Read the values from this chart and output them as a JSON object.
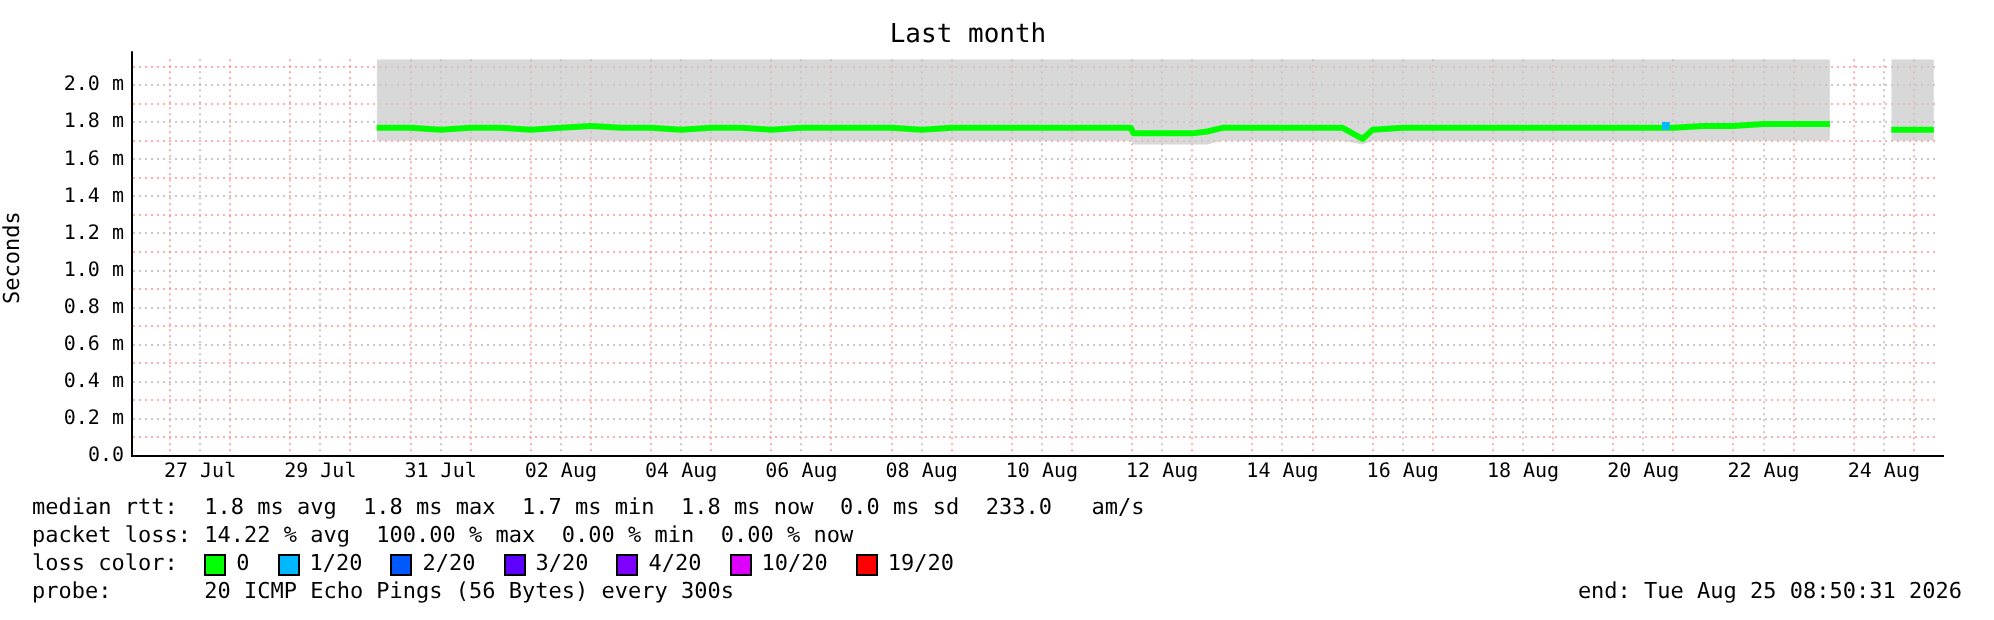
{
  "chart_data": {
    "type": "line",
    "title": "Last month",
    "ylabel": "Seconds",
    "xlim": [
      "2026-07-26T08:50",
      "2026-08-25T08:50"
    ],
    "xticks": [
      {
        "value": "2026-07-27T00:00",
        "label": null
      },
      {
        "value": "2026-07-27T12:00",
        "label": "27 Jul"
      },
      {
        "value": "2026-07-28T00:00",
        "label": null
      },
      {
        "value": "2026-07-29T00:00",
        "label": null
      },
      {
        "value": "2026-07-29T12:00",
        "label": "29 Jul"
      },
      {
        "value": "2026-07-30T00:00",
        "label": null
      },
      {
        "value": "2026-07-31T00:00",
        "label": null
      },
      {
        "value": "2026-07-31T12:00",
        "label": "31 Jul"
      },
      {
        "value": "2026-08-01T00:00",
        "label": null
      },
      {
        "value": "2026-08-02T00:00",
        "label": null
      },
      {
        "value": "2026-08-02T12:00",
        "label": "02 Aug"
      },
      {
        "value": "2026-08-03T00:00",
        "label": null
      },
      {
        "value": "2026-08-04T00:00",
        "label": null
      },
      {
        "value": "2026-08-04T12:00",
        "label": "04 Aug"
      },
      {
        "value": "2026-08-05T00:00",
        "label": null
      },
      {
        "value": "2026-08-06T00:00",
        "label": null
      },
      {
        "value": "2026-08-06T12:00",
        "label": "06 Aug"
      },
      {
        "value": "2026-08-07T00:00",
        "label": null
      },
      {
        "value": "2026-08-08T00:00",
        "label": null
      },
      {
        "value": "2026-08-08T12:00",
        "label": "08 Aug"
      },
      {
        "value": "2026-08-09T00:00",
        "label": null
      },
      {
        "value": "2026-08-10T00:00",
        "label": null
      },
      {
        "value": "2026-08-10T12:00",
        "label": "10 Aug"
      },
      {
        "value": "2026-08-11T00:00",
        "label": null
      },
      {
        "value": "2026-08-12T00:00",
        "label": null
      },
      {
        "value": "2026-08-12T12:00",
        "label": "12 Aug"
      },
      {
        "value": "2026-08-13T00:00",
        "label": null
      },
      {
        "value": "2026-08-14T00:00",
        "label": null
      },
      {
        "value": "2026-08-14T12:00",
        "label": "14 Aug"
      },
      {
        "value": "2026-08-15T00:00",
        "label": null
      },
      {
        "value": "2026-08-16T00:00",
        "label": null
      },
      {
        "value": "2026-08-16T12:00",
        "label": "16 Aug"
      },
      {
        "value": "2026-08-17T00:00",
        "label": null
      },
      {
        "value": "2026-08-18T00:00",
        "label": null
      },
      {
        "value": "2026-08-18T12:00",
        "label": "18 Aug"
      },
      {
        "value": "2026-08-19T00:00",
        "label": null
      },
      {
        "value": "2026-08-20T00:00",
        "label": null
      },
      {
        "value": "2026-08-20T12:00",
        "label": "20 Aug"
      },
      {
        "value": "2026-08-21T00:00",
        "label": null
      },
      {
        "value": "2026-08-22T00:00",
        "label": null
      },
      {
        "value": "2026-08-22T12:00",
        "label": "22 Aug"
      },
      {
        "value": "2026-08-23T00:00",
        "label": null
      },
      {
        "value": "2026-08-24T00:00",
        "label": null
      },
      {
        "value": "2026-08-24T12:00",
        "label": "24 Aug"
      },
      {
        "value": "2026-08-25T00:00",
        "label": null
      }
    ],
    "ylim": [
      0,
      2.14
    ],
    "yticks": [
      {
        "value": 0,
        "label": "0.0"
      },
      {
        "value": 0.1,
        "label": null
      },
      {
        "value": 0.2,
        "label": "0.2 m"
      },
      {
        "value": 0.3,
        "label": null
      },
      {
        "value": 0.4,
        "label": "0.4 m"
      },
      {
        "value": 0.5,
        "label": null
      },
      {
        "value": 0.6,
        "label": "0.6 m"
      },
      {
        "value": 0.7,
        "label": null
      },
      {
        "value": 0.8,
        "label": "0.8 m"
      },
      {
        "value": 0.9,
        "label": null
      },
      {
        "value": 1.0,
        "label": "1.0 m"
      },
      {
        "value": 1.1,
        "label": null
      },
      {
        "value": 1.2,
        "label": "1.2 m"
      },
      {
        "value": 1.3,
        "label": null
      },
      {
        "value": 1.4,
        "label": "1.4 m"
      },
      {
        "value": 1.5,
        "label": null
      },
      {
        "value": 1.6,
        "label": "1.6 m"
      },
      {
        "value": 1.7,
        "label": null
      },
      {
        "value": 1.8,
        "label": "1.8 m"
      },
      {
        "value": 1.9,
        "label": null
      },
      {
        "value": 2.0,
        "label": "2.0 m"
      },
      {
        "value": 2.1,
        "label": null
      }
    ],
    "grid": true,
    "legend": "bottom",
    "legend_title": "loss color:",
    "marker": "none",
    "line_style": "solid",
    "series": [
      {
        "name": "0",
        "color": "#00ff00",
        "x": [
          "2026-07-30T10:30",
          "2026-07-31T00:00",
          "2026-07-31T12:00",
          "2026-08-01T00:00",
          "2026-08-01T12:00",
          "2026-08-02T00:00",
          "2026-08-02T12:00",
          "2026-08-03T00:00",
          "2026-08-03T12:00",
          "2026-08-04T00:00",
          "2026-08-04T12:00",
          "2026-08-05T00:00",
          "2026-08-05T12:00",
          "2026-08-06T00:00",
          "2026-08-06T12:00",
          "2026-08-07T00:00",
          "2026-08-07T12:00",
          "2026-08-08T00:00",
          "2026-08-08T12:00",
          "2026-08-09T00:00",
          "2026-08-09T12:00",
          "2026-08-10T00:00",
          "2026-08-10T12:00",
          "2026-08-11T00:00",
          "2026-08-11T12:00",
          "2026-08-11T23:30",
          "2026-08-12T00:30",
          "2026-08-12T12:00",
          "2026-08-13T00:00",
          "2026-08-13T06:00",
          "2026-08-13T12:00",
          "2026-08-14T00:00",
          "2026-08-14T12:00",
          "2026-08-15T00:00",
          "2026-08-15T12:00",
          "2026-08-15T20:00",
          "2026-08-16T00:00",
          "2026-08-16T12:00",
          "2026-08-17T00:00",
          "2026-08-17T12:00",
          "2026-08-18T00:00",
          "2026-08-18T12:00",
          "2026-08-19T00:00",
          "2026-08-19T12:00",
          "2026-08-20T00:00",
          "2026-08-20T12:00",
          "2026-08-21T00:00",
          "2026-08-21T12:00",
          "2026-08-22T00:00",
          "2026-08-22T12:00",
          "2026-08-23T00:00",
          "2026-08-23T14:30",
          "2026-08-24T00:00",
          "2026-08-24T15:00",
          "2026-08-25T00:00",
          "2026-08-25T08:00"
        ],
        "values": [
          1.77,
          1.77,
          1.76,
          1.77,
          1.77,
          1.76,
          1.77,
          1.78,
          1.77,
          1.77,
          1.76,
          1.77,
          1.77,
          1.76,
          1.77,
          1.77,
          1.77,
          1.77,
          1.76,
          1.77,
          1.77,
          1.77,
          1.77,
          1.77,
          1.77,
          1.77,
          1.74,
          1.74,
          1.74,
          1.75,
          1.77,
          1.77,
          1.77,
          1.77,
          1.77,
          1.71,
          1.76,
          1.77,
          1.77,
          1.77,
          1.77,
          1.77,
          1.77,
          1.77,
          1.77,
          1.77,
          1.77,
          1.78,
          1.78,
          1.79,
          1.79,
          1.79,
          null,
          1.76,
          1.76,
          1.76
        ],
        "lower": [
          1.7,
          1.7,
          1.7,
          1.7,
          1.7,
          1.7,
          1.7,
          1.7,
          1.7,
          1.7,
          1.7,
          1.7,
          1.7,
          1.7,
          1.7,
          1.7,
          1.7,
          1.7,
          1.7,
          1.7,
          1.7,
          1.7,
          1.7,
          1.7,
          1.7,
          1.7,
          1.68,
          1.68,
          1.68,
          1.68,
          1.7,
          1.7,
          1.7,
          1.7,
          1.7,
          1.68,
          1.7,
          1.7,
          1.7,
          1.7,
          1.7,
          1.7,
          1.7,
          1.7,
          1.7,
          1.7,
          1.7,
          1.7,
          1.7,
          1.7,
          1.7,
          1.7,
          null,
          1.7,
          1.7,
          1.7
        ],
        "upper": [
          2.14,
          2.14,
          2.14,
          2.14,
          2.14,
          2.14,
          2.14,
          2.14,
          2.14,
          2.14,
          2.14,
          2.14,
          2.14,
          2.14,
          2.14,
          2.14,
          2.14,
          2.14,
          2.14,
          2.14,
          2.14,
          2.14,
          2.14,
          2.14,
          2.14,
          2.14,
          2.14,
          2.14,
          2.14,
          2.14,
          2.14,
          2.14,
          2.14,
          2.14,
          2.14,
          2.14,
          2.14,
          2.14,
          2.14,
          2.14,
          2.14,
          2.14,
          2.14,
          2.14,
          2.14,
          2.14,
          2.14,
          2.14,
          2.14,
          2.14,
          2.14,
          2.14,
          null,
          2.14,
          2.14,
          2.14
        ]
      },
      {
        "name": "1/20",
        "color": "#00b8ff",
        "type": "scatter",
        "marker": "square",
        "x": [
          "2026-08-20T21:00"
        ],
        "values": [
          1.78
        ]
      },
      {
        "name": "2/20",
        "color": "#0059ff",
        "type": "scatter"
      },
      {
        "name": "3/20",
        "color": "#5e00ff",
        "type": "scatter"
      },
      {
        "name": "4/20",
        "color": "#7e00ff",
        "type": "scatter"
      },
      {
        "name": "10/20",
        "color": "#dd00ff",
        "type": "scatter"
      },
      {
        "name": "19/20",
        "color": "#ff0000",
        "type": "scatter"
      }
    ],
    "annotations": [
      "median rtt:  1.8 ms avg  1.8 ms max  1.7 ms min  1.8 ms now  0.0 ms sd  233.0   am/s",
      "packet loss: 14.22 % avg  100.00 % max  0.00 % min  0.00 % now",
      "probe:       20 ICMP Echo Pings (56 Bytes) every 300s",
      "end: Tue Aug 25 08:50:31 2026"
    ]
  }
}
